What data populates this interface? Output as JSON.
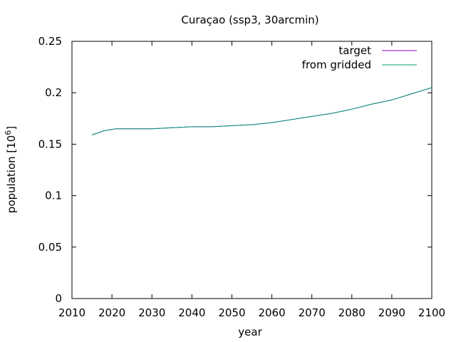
{
  "chart_data": {
    "type": "line",
    "title": "Curaçao (ssp3, 30arcmin)",
    "xlabel": "year",
    "ylabel_main": "population [10",
    "ylabel_exp": "6",
    "ylabel_close": "]",
    "xlim": [
      2010,
      2100
    ],
    "ylim": [
      0,
      0.25
    ],
    "x_ticks": [
      "2010",
      "2020",
      "2030",
      "2040",
      "2050",
      "2060",
      "2070",
      "2080",
      "2090",
      "2100"
    ],
    "x_tick_values": [
      2010,
      2020,
      2030,
      2040,
      2050,
      2060,
      2070,
      2080,
      2090,
      2100
    ],
    "y_ticks": [
      "0",
      "0.05",
      "0.1",
      "0.15",
      "0.2",
      "0.25"
    ],
    "y_tick_values": [
      0,
      0.05,
      0.1,
      0.15,
      0.2,
      0.25
    ],
    "legend_position": "top-right",
    "grid": false,
    "series": [
      {
        "name": "target",
        "color": "#9400d3",
        "x": [
          2015,
          2018,
          2021,
          2025,
          2030,
          2035,
          2040,
          2045,
          2050,
          2055,
          2060,
          2065,
          2070,
          2075,
          2080,
          2085,
          2090,
          2095,
          2100
        ],
        "y": [
          0.159,
          0.163,
          0.165,
          0.165,
          0.165,
          0.166,
          0.167,
          0.167,
          0.168,
          0.169,
          0.171,
          0.174,
          0.177,
          0.18,
          0.184,
          0.189,
          0.193,
          0.199,
          0.205
        ]
      },
      {
        "name": "from gridded",
        "color": "#009e73",
        "x": [
          2015,
          2018,
          2021,
          2025,
          2030,
          2035,
          2040,
          2045,
          2050,
          2055,
          2060,
          2065,
          2070,
          2075,
          2080,
          2085,
          2090,
          2095,
          2100
        ],
        "y": [
          0.159,
          0.163,
          0.165,
          0.165,
          0.165,
          0.166,
          0.167,
          0.167,
          0.168,
          0.169,
          0.171,
          0.174,
          0.177,
          0.18,
          0.184,
          0.189,
          0.193,
          0.199,
          0.205
        ]
      }
    ]
  }
}
